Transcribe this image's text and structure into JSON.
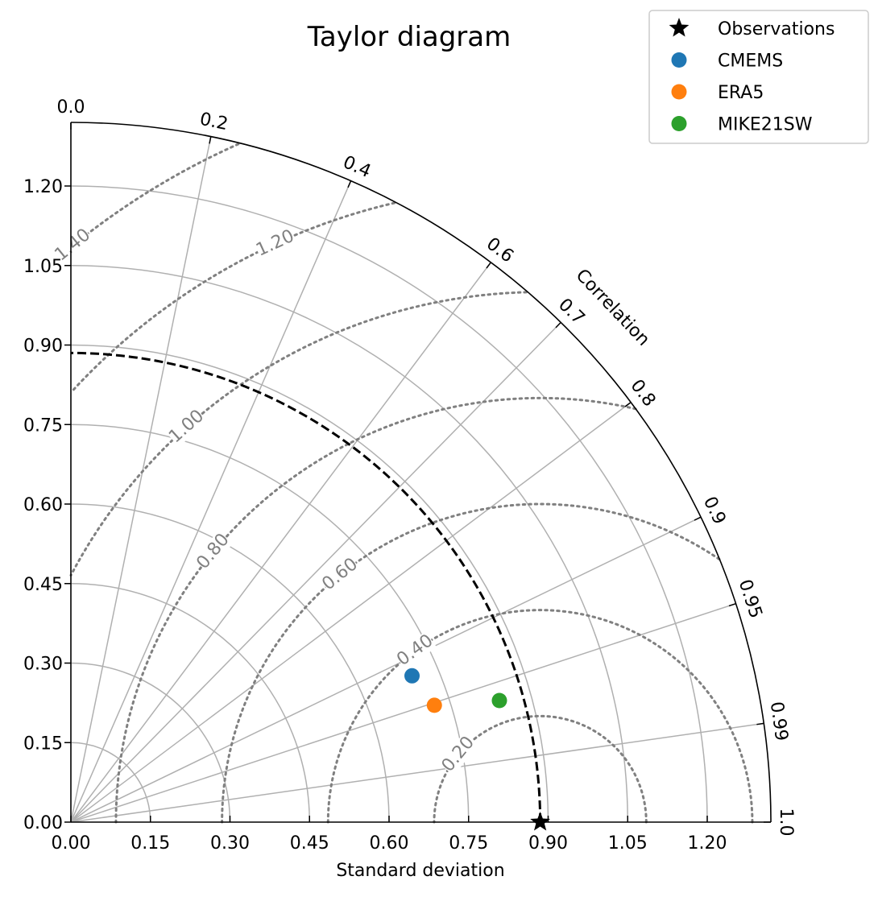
{
  "chart_data": {
    "type": "scatter",
    "title": "Taylor diagram",
    "xlabel": "Standard deviation",
    "corr_label": "Correlation",
    "std_range": [
      0,
      1.32
    ],
    "std_ticks": [
      "0.00",
      "0.15",
      "0.30",
      "0.45",
      "0.60",
      "0.75",
      "0.90",
      "1.05",
      "1.20"
    ],
    "std_tick_values": [
      0,
      0.15,
      0.3,
      0.45,
      0.6,
      0.75,
      0.9,
      1.05,
      1.2
    ],
    "corr_ticks": [
      {
        "value": 0.0,
        "label": "0.0"
      },
      {
        "value": 0.2,
        "label": "0.2"
      },
      {
        "value": 0.4,
        "label": "0.4"
      },
      {
        "value": 0.6,
        "label": "0.6"
      },
      {
        "value": 0.7,
        "label": "0.7"
      },
      {
        "value": 0.8,
        "label": "0.8"
      },
      {
        "value": 0.9,
        "label": "0.9"
      },
      {
        "value": 0.95,
        "label": "0.95"
      },
      {
        "value": 0.99,
        "label": "0.99"
      },
      {
        "value": 1.0,
        "label": "1.0"
      }
    ],
    "rms_contours": [
      0.2,
      0.4,
      0.6,
      0.8,
      1.0,
      1.2,
      1.4
    ],
    "rms_labels": [
      "0.20",
      "0.40",
      "0.60",
      "0.80",
      "1.00",
      "1.20",
      "1.40"
    ],
    "reference": {
      "name": "Observations",
      "std": 0.885,
      "color": "#000000"
    },
    "series": [
      {
        "name": "CMEMS",
        "std": 0.7,
        "corr": 0.919,
        "color": "#1f77b4"
      },
      {
        "name": "ERA5",
        "std": 0.72,
        "corr": 0.952,
        "color": "#ff7f0e"
      },
      {
        "name": "MIKE21SW",
        "std": 0.84,
        "corr": 0.962,
        "color": "#2ca02c"
      }
    ],
    "legend_position": "top-right",
    "grid": true
  }
}
